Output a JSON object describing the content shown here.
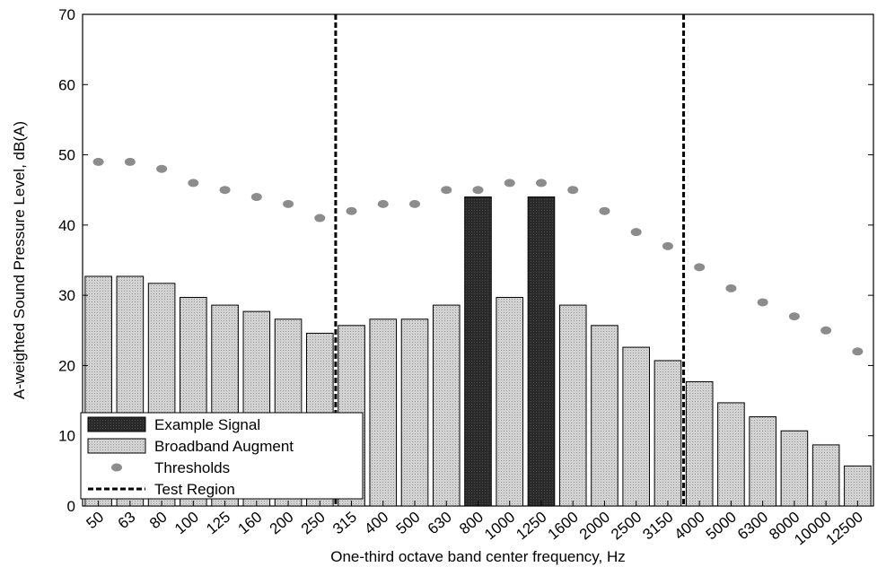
{
  "chart_data": {
    "type": "bar",
    "xlabel": "One-third octave band center frequency, Hz",
    "ylabel": "A-weighted Sound Pressure Level, dB(A)",
    "ylim": [
      0,
      70
    ],
    "yticks": [
      "0",
      "10",
      "20",
      "30",
      "40",
      "50",
      "60",
      "70"
    ],
    "categories": [
      "50",
      "63",
      "80",
      "100",
      "125",
      "160",
      "200",
      "250",
      "315",
      "400",
      "500",
      "630",
      "800",
      "1000",
      "1250",
      "1600",
      "2000",
      "2500",
      "3150",
      "4000",
      "5000",
      "6300",
      "8000",
      "10000",
      "12500"
    ],
    "series": [
      {
        "name": "Broadband Augment",
        "values": [
          32.7,
          32.7,
          31.7,
          29.7,
          28.6,
          27.7,
          26.6,
          24.6,
          25.7,
          26.6,
          26.6,
          28.6,
          null,
          29.7,
          null,
          28.6,
          25.7,
          22.6,
          20.7,
          17.7,
          14.7,
          12.7,
          10.7,
          8.7,
          5.7
        ],
        "color": "#c4c4c4"
      },
      {
        "name": "Example Signal",
        "values": [
          null,
          null,
          null,
          null,
          null,
          null,
          null,
          null,
          null,
          null,
          null,
          null,
          44,
          null,
          44,
          null,
          null,
          null,
          null,
          null,
          null,
          null,
          null,
          null,
          null
        ],
        "color": "#2a2a2a"
      },
      {
        "name": "Thresholds",
        "values": [
          49,
          49,
          48,
          46,
          45,
          44,
          43,
          41,
          42,
          43,
          43,
          45,
          45,
          46,
          46,
          45,
          42,
          39,
          37,
          34,
          31,
          29,
          27,
          25,
          22
        ],
        "color": "#8c8c8c"
      }
    ],
    "test_region": {
      "name": "Test Region",
      "from_after": "250",
      "to_after": "3150"
    },
    "legend": {
      "position": "bottom-left",
      "entries": [
        "Example Signal",
        "Broadband Augment",
        "Thresholds",
        "Test Region"
      ]
    },
    "grid": false
  }
}
